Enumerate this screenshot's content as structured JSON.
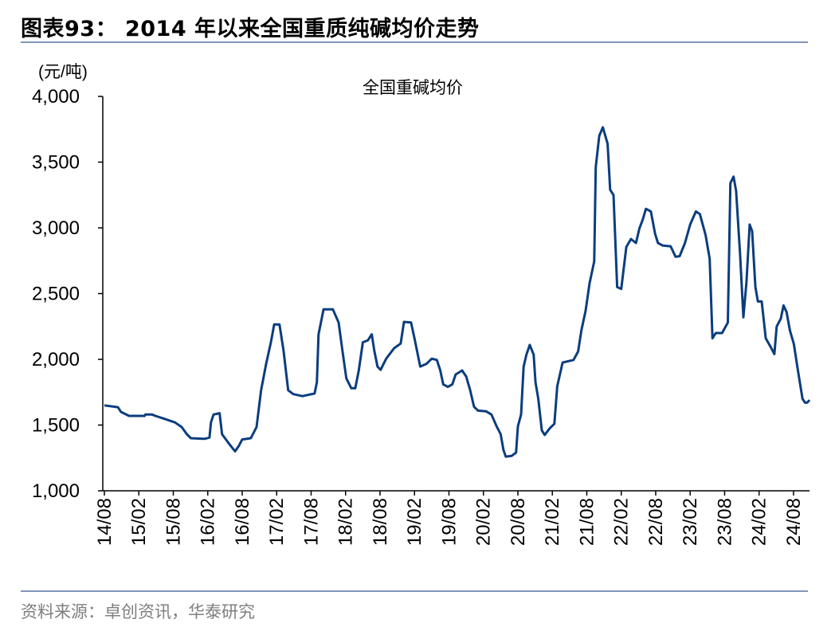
{
  "header": {
    "title": "图表93：  2014 年以来全国重质纯碱均价走势"
  },
  "footer": {
    "source": "资料来源：卓创资讯，华泰研究"
  },
  "chart_data": {
    "type": "line",
    "title": "",
    "ylabel": "(元/吨)",
    "xlabel": "",
    "ylim": [
      1000,
      4000
    ],
    "yticks": [
      1000,
      1500,
      2000,
      2500,
      3000,
      3500,
      4000
    ],
    "ytick_labels": [
      "1,000",
      "1,500",
      "2,000",
      "2,500",
      "3,000",
      "3,500",
      "4,000"
    ],
    "xlim": [
      "2014-08-01",
      "2024-10-25"
    ],
    "xticks": [
      "2014-08-01",
      "2015-02-01",
      "2015-08-01",
      "2016-02-01",
      "2016-08-01",
      "2017-02-01",
      "2017-08-01",
      "2018-02-01",
      "2018-08-01",
      "2019-02-01",
      "2019-08-01",
      "2020-02-01",
      "2020-08-01",
      "2021-02-01",
      "2021-08-01",
      "2022-02-01",
      "2022-08-01",
      "2023-02-01",
      "2023-08-01",
      "2024-02-01",
      "2024-08-01"
    ],
    "xtick_labels": [
      "14/08",
      "15/02",
      "15/08",
      "16/02",
      "16/08",
      "17/02",
      "17/08",
      "18/02",
      "18/08",
      "19/02",
      "19/08",
      "20/02",
      "20/08",
      "21/02",
      "21/08",
      "22/02",
      "22/08",
      "23/02",
      "23/08",
      "24/02",
      "24/08"
    ],
    "grid": false,
    "color": "#0b3d7e",
    "series": [
      {
        "name": "全国重碱均价",
        "points": [
          [
            "2014-08-01",
            1650
          ],
          [
            "2014-10-12",
            1636
          ],
          [
            "2014-10-28",
            1600
          ],
          [
            "2014-12-10",
            1570
          ],
          [
            "2015-03-01",
            1570
          ],
          [
            "2015-03-05",
            1580
          ],
          [
            "2015-04-10",
            1580
          ],
          [
            "2015-04-28",
            1570
          ],
          [
            "2015-06-10",
            1550
          ],
          [
            "2015-08-10",
            1520
          ],
          [
            "2015-09-15",
            1485
          ],
          [
            "2015-10-12",
            1430
          ],
          [
            "2015-11-03",
            1400
          ],
          [
            "2016-01-15",
            1395
          ],
          [
            "2016-02-10",
            1405
          ],
          [
            "2016-02-18",
            1520
          ],
          [
            "2016-03-01",
            1580
          ],
          [
            "2016-04-03",
            1590
          ],
          [
            "2016-04-16",
            1430
          ],
          [
            "2016-05-19",
            1365
          ],
          [
            "2016-06-24",
            1300
          ],
          [
            "2016-07-13",
            1340
          ],
          [
            "2016-08-01",
            1390
          ],
          [
            "2016-09-16",
            1400
          ],
          [
            "2016-10-16",
            1485
          ],
          [
            "2016-11-10",
            1765
          ],
          [
            "2016-12-06",
            1965
          ],
          [
            "2017-01-01",
            2130
          ],
          [
            "2017-01-18",
            2265
          ],
          [
            "2017-02-16",
            2265
          ],
          [
            "2017-03-07",
            2065
          ],
          [
            "2017-04-01",
            1765
          ],
          [
            "2017-04-28",
            1735
          ],
          [
            "2017-06-16",
            1720
          ],
          [
            "2017-08-19",
            1740
          ],
          [
            "2017-09-01",
            1825
          ],
          [
            "2017-09-10",
            2190
          ],
          [
            "2017-10-06",
            2380
          ],
          [
            "2017-11-25",
            2380
          ],
          [
            "2017-12-25",
            2280
          ],
          [
            "2018-01-15",
            2065
          ],
          [
            "2018-02-05",
            1855
          ],
          [
            "2018-03-01",
            1780
          ],
          [
            "2018-03-22",
            1780
          ],
          [
            "2018-04-10",
            1915
          ],
          [
            "2018-05-01",
            2130
          ],
          [
            "2018-05-28",
            2145
          ],
          [
            "2018-06-18",
            2190
          ],
          [
            "2018-07-01",
            2065
          ],
          [
            "2018-07-18",
            1945
          ],
          [
            "2018-08-04",
            1920
          ],
          [
            "2018-09-03",
            2005
          ],
          [
            "2018-10-15",
            2085
          ],
          [
            "2018-11-19",
            2120
          ],
          [
            "2018-12-06",
            2285
          ],
          [
            "2019-01-13",
            2280
          ],
          [
            "2019-02-01",
            2160
          ],
          [
            "2019-03-01",
            1945
          ],
          [
            "2019-04-03",
            1965
          ],
          [
            "2019-05-01",
            2005
          ],
          [
            "2019-05-28",
            1995
          ],
          [
            "2019-06-16",
            1915
          ],
          [
            "2019-07-01",
            1810
          ],
          [
            "2019-07-25",
            1790
          ],
          [
            "2019-08-19",
            1810
          ],
          [
            "2019-09-06",
            1885
          ],
          [
            "2019-10-10",
            1915
          ],
          [
            "2019-11-01",
            1870
          ],
          [
            "2019-11-22",
            1765
          ],
          [
            "2019-12-12",
            1640
          ],
          [
            "2020-01-03",
            1610
          ],
          [
            "2020-02-15",
            1605
          ],
          [
            "2020-03-13",
            1580
          ],
          [
            "2020-04-10",
            1490
          ],
          [
            "2020-05-01",
            1430
          ],
          [
            "2020-05-16",
            1310
          ],
          [
            "2020-05-28",
            1260
          ],
          [
            "2020-06-28",
            1265
          ],
          [
            "2020-07-22",
            1290
          ],
          [
            "2020-08-01",
            1490
          ],
          [
            "2020-08-18",
            1580
          ],
          [
            "2020-09-01",
            1945
          ],
          [
            "2020-09-16",
            2035
          ],
          [
            "2020-10-03",
            2110
          ],
          [
            "2020-10-24",
            2035
          ],
          [
            "2020-11-03",
            1825
          ],
          [
            "2020-11-18",
            1700
          ],
          [
            "2020-12-06",
            1460
          ],
          [
            "2020-12-21",
            1425
          ],
          [
            "2021-01-18",
            1475
          ],
          [
            "2021-02-12",
            1510
          ],
          [
            "2021-02-27",
            1795
          ],
          [
            "2021-03-25",
            1975
          ],
          [
            "2021-05-22",
            1995
          ],
          [
            "2021-06-16",
            2060
          ],
          [
            "2021-07-03",
            2220
          ],
          [
            "2021-07-25",
            2370
          ],
          [
            "2021-08-16",
            2580
          ],
          [
            "2021-09-10",
            2745
          ],
          [
            "2021-09-18",
            3460
          ],
          [
            "2021-10-06",
            3700
          ],
          [
            "2021-10-25",
            3765
          ],
          [
            "2021-11-20",
            3640
          ],
          [
            "2021-12-03",
            3290
          ],
          [
            "2021-12-21",
            3250
          ],
          [
            "2022-01-10",
            2550
          ],
          [
            "2022-02-01",
            2535
          ],
          [
            "2022-02-28",
            2855
          ],
          [
            "2022-03-22",
            2915
          ],
          [
            "2022-04-18",
            2885
          ],
          [
            "2022-05-06",
            2995
          ],
          [
            "2022-05-24",
            3065
          ],
          [
            "2022-06-10",
            3145
          ],
          [
            "2022-07-06",
            3125
          ],
          [
            "2022-07-28",
            2955
          ],
          [
            "2022-08-13",
            2885
          ],
          [
            "2022-09-09",
            2865
          ],
          [
            "2022-10-19",
            2860
          ],
          [
            "2022-11-15",
            2780
          ],
          [
            "2022-12-06",
            2785
          ],
          [
            "2023-01-04",
            2885
          ],
          [
            "2023-02-01",
            3025
          ],
          [
            "2023-03-01",
            3125
          ],
          [
            "2023-03-22",
            3105
          ],
          [
            "2023-04-22",
            2945
          ],
          [
            "2023-05-13",
            2765
          ],
          [
            "2023-05-28",
            2160
          ],
          [
            "2023-06-15",
            2200
          ],
          [
            "2023-07-18",
            2200
          ],
          [
            "2023-08-18",
            2280
          ],
          [
            "2023-09-01",
            3340
          ],
          [
            "2023-09-18",
            3390
          ],
          [
            "2023-10-01",
            3280
          ],
          [
            "2023-10-22",
            2795
          ],
          [
            "2023-11-09",
            2320
          ],
          [
            "2023-11-25",
            2580
          ],
          [
            "2023-12-12",
            3025
          ],
          [
            "2023-12-25",
            2975
          ],
          [
            "2024-01-12",
            2550
          ],
          [
            "2024-01-25",
            2440
          ],
          [
            "2024-02-15",
            2440
          ],
          [
            "2024-03-06",
            2160
          ],
          [
            "2024-04-03",
            2090
          ],
          [
            "2024-04-21",
            2040
          ],
          [
            "2024-05-03",
            2250
          ],
          [
            "2024-05-25",
            2310
          ],
          [
            "2024-06-09",
            2410
          ],
          [
            "2024-06-25",
            2360
          ],
          [
            "2024-07-12",
            2220
          ],
          [
            "2024-08-03",
            2115
          ],
          [
            "2024-08-21",
            1945
          ],
          [
            "2024-09-03",
            1835
          ],
          [
            "2024-09-18",
            1700
          ],
          [
            "2024-10-01",
            1670
          ],
          [
            "2024-10-12",
            1670
          ],
          [
            "2024-10-25",
            1690
          ]
        ]
      }
    ]
  }
}
